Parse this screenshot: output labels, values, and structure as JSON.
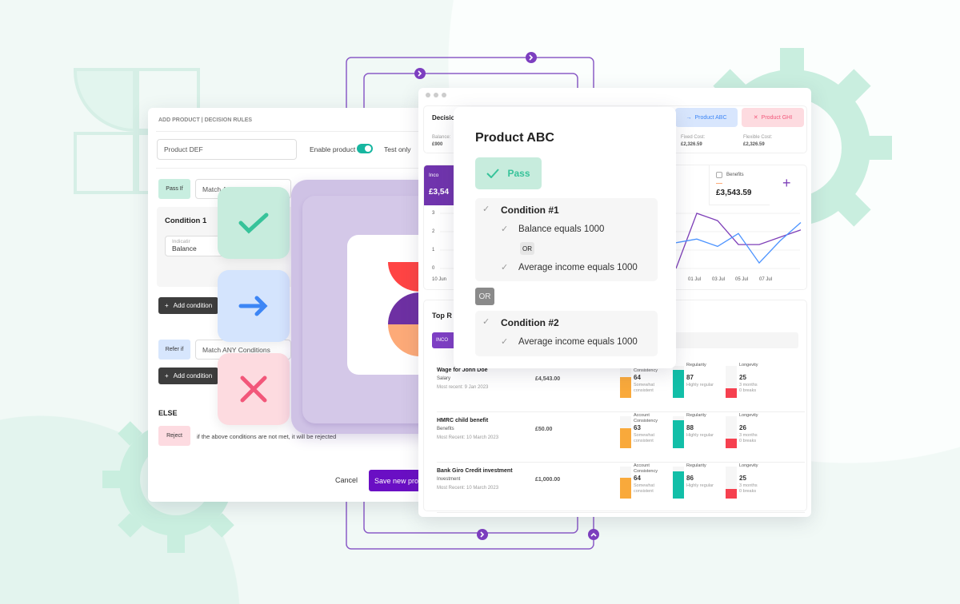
{
  "left_panel": {
    "title": "ADD PRODUCT | DECISION RULES",
    "product_name": "Product DEF",
    "enable_label": "Enable product",
    "test_label": "Test only",
    "pass_if": "Pass If",
    "match_all": "Match A",
    "condition1": "Condition 1",
    "indicator_label": "Indicatir",
    "indicator_value": "Balance",
    "add_condition": "Add condition",
    "refer_if": "Refer if",
    "match_any": "Match ANY Conditions",
    "else": "ELSE",
    "reject": "Reject",
    "reject_text": "if the above conditions are not met, it will be rejected",
    "cancel": "Cancel",
    "save": "Save new pro"
  },
  "right_panel": {
    "decision": "Decisio",
    "balance_label": "Balance:",
    "balance_value": "£900",
    "product_abc": "Product ABC",
    "product_ghi": "Product GHI",
    "fixed_label": "Fixed Cost:",
    "fixed_value": "£2,326.59",
    "flex_label": "Flexible Cost:",
    "flex_value": "£2,326.59",
    "income_label": "Inco",
    "income_value": "£3,54",
    "benefits_label": "Benefits",
    "benefits_value": "£3,543.59",
    "y_ticks": [
      "3",
      "2",
      "1",
      "0"
    ],
    "x_ticks": [
      "10 Jun",
      "01 Jul",
      "03 Jul",
      "05 Jul",
      "07 Jul"
    ],
    "series": {
      "purple": [
        0,
        3,
        2.6,
        1.3,
        1.3,
        1.7,
        2.1
      ],
      "blue": [
        1.4,
        1.6,
        1.2,
        1.9,
        0.3,
        1.5,
        2.5
      ]
    },
    "colors": {
      "purple": "#7e3fb8",
      "blue": "#4d94ff"
    },
    "top_title": "Top R",
    "income_tab": "INCO",
    "rows": [
      {
        "name": "Wage for John Doe",
        "cat": "Salary",
        "recent": "Most recent: 9 Jan 2023",
        "amount": "£4,543.00",
        "consistency": "64",
        "cons_text": "Somewhat consistent",
        "regularity": "87",
        "reg_text": "Highly regular",
        "longevity": "25",
        "long_text": "3 months",
        "breaks": "0 breaks"
      },
      {
        "name": "HMRC child benefit",
        "cat": "Benefits",
        "recent": "Most Recent: 10 March 2023",
        "amount": "£50.00",
        "consistency": "63",
        "cons_text": "Somewhat consistent",
        "regularity": "88",
        "reg_text": "Highly regular",
        "longevity": "26",
        "long_text": "3 months",
        "breaks": "0 breaks"
      },
      {
        "name": "Bank Giro Credit investment",
        "cat": "Investment",
        "recent": "Most Recent: 10 March 2023",
        "amount": "£1,000.00",
        "consistency": "64",
        "cons_text": "Somewhat consistent",
        "regularity": "86",
        "reg_text": "Highly regular",
        "longevity": "25",
        "long_text": "3 months",
        "breaks": "0 breaks"
      }
    ],
    "cons_label": "Account Consistency",
    "reg_label": "Regularity",
    "long_label": "Longevity"
  },
  "popup": {
    "title": "Product ABC",
    "status": "Pass",
    "cond1": "Condition #1",
    "c1a": "Balance equals 1000",
    "or": "OR",
    "c1b": "Average income equals 1000",
    "cond2": "Condition #2",
    "c2a": "Average income equals 1000"
  }
}
